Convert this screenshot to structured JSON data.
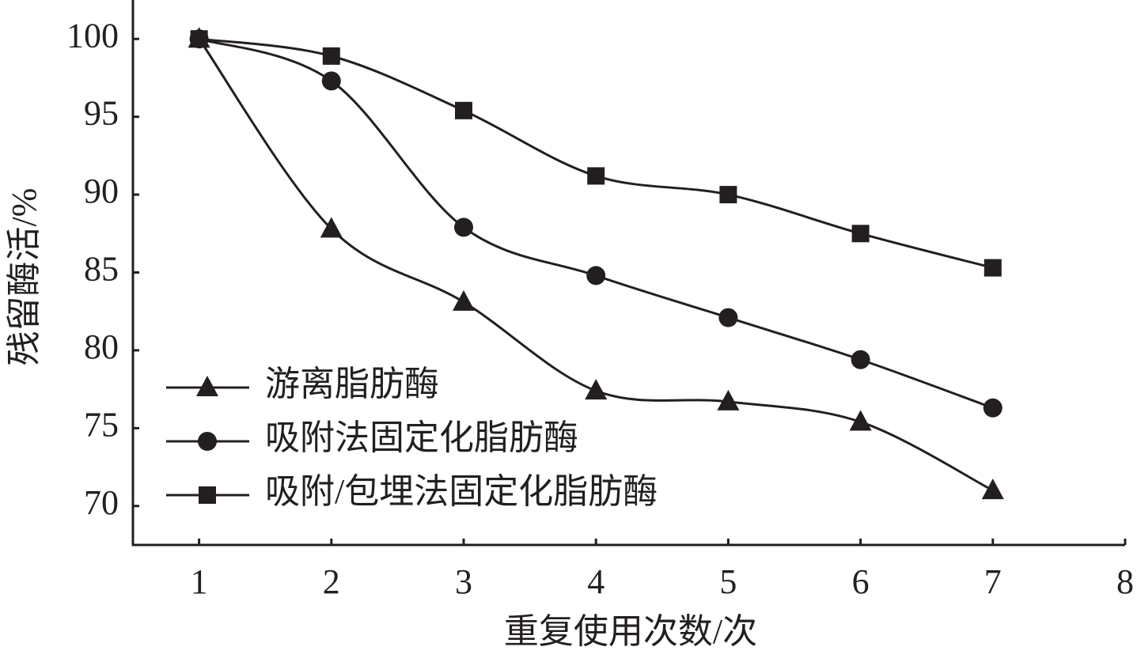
{
  "chart_data": {
    "type": "line",
    "xlabel": "重复使用次数/次",
    "ylabel": "残留酶活/%",
    "x": [
      1,
      2,
      3,
      4,
      5,
      6,
      7
    ],
    "series": [
      {
        "name": "游离脂肪酶",
        "color": "#231f20",
        "marker": "triangle",
        "values": [
          100,
          87.8,
          83.1,
          77.4,
          76.7,
          75.4,
          71.0
        ]
      },
      {
        "name": "吸附法固定化脂肪酶",
        "color": "#231f20",
        "marker": "circle",
        "values": [
          100,
          97.3,
          87.9,
          84.8,
          82.1,
          79.4,
          76.3
        ]
      },
      {
        "name": "吸附/包埋法固定化脂肪酶",
        "color": "#231f20",
        "marker": "square",
        "values": [
          100,
          98.9,
          95.4,
          91.2,
          90.0,
          87.5,
          85.3
        ]
      }
    ],
    "xlim": [
      0.5,
      8
    ],
    "xticks": [
      1,
      2,
      3,
      4,
      5,
      6,
      7,
      8
    ],
    "ylim": [
      67.5,
      102.5
    ],
    "yticks": [
      70,
      75,
      80,
      85,
      90,
      95,
      100
    ],
    "grid": false,
    "legend": "lower left"
  }
}
